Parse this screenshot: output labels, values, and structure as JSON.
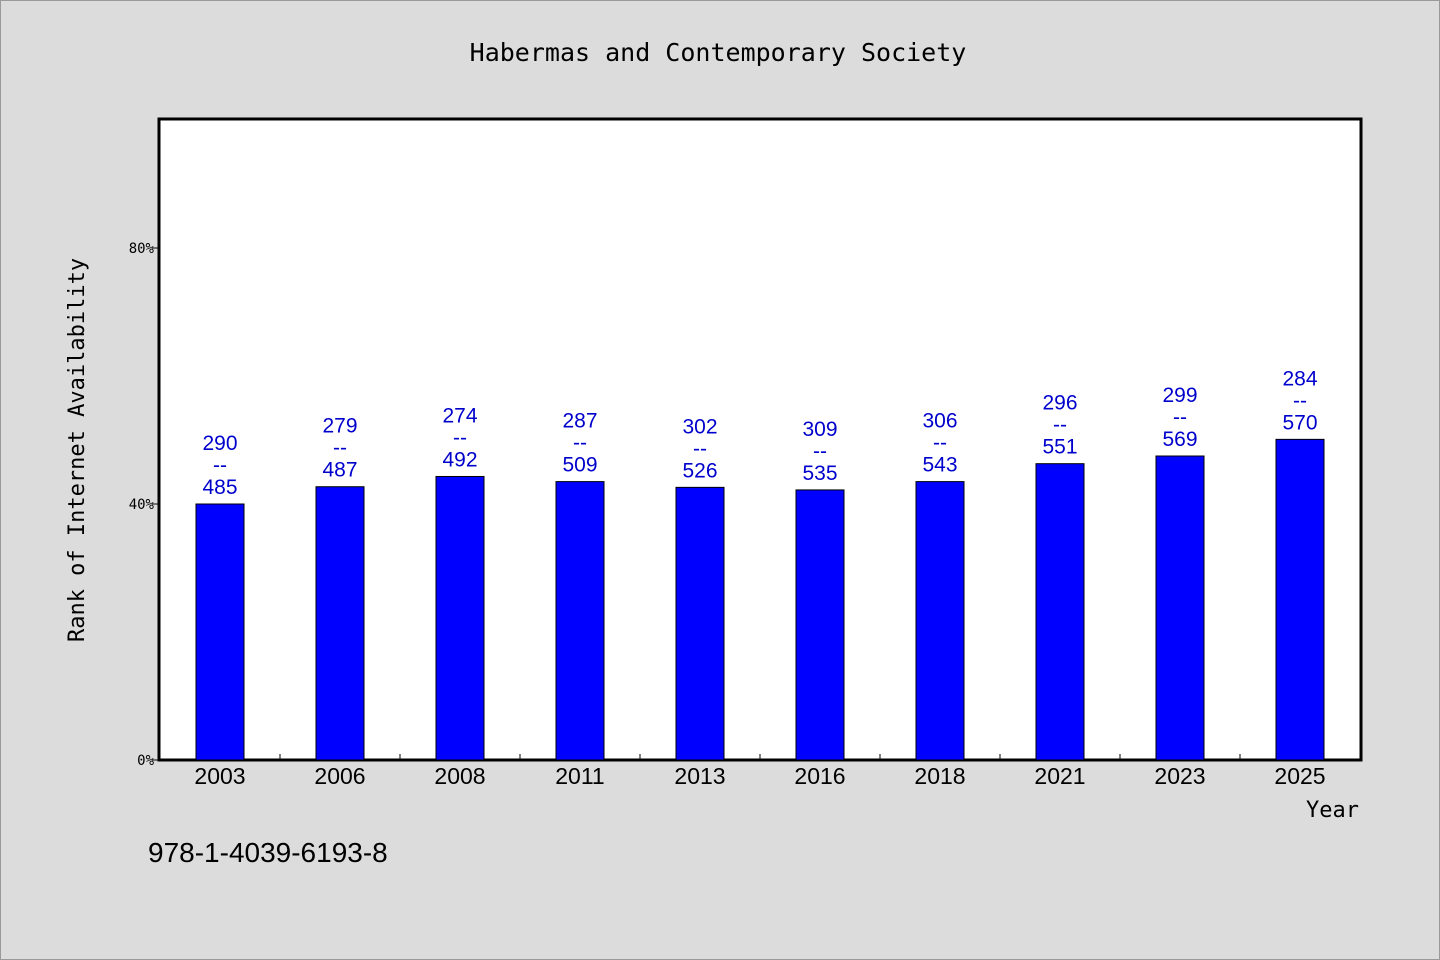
{
  "chart_data": {
    "type": "bar",
    "title": "Habermas and Contemporary Society",
    "xlabel": "Year",
    "ylabel": "Rank of Internet Availability",
    "ylim": [
      0,
      100
    ],
    "yticks": [
      {
        "value": 0,
        "label": "0%"
      },
      {
        "value": 40,
        "label": "40%"
      },
      {
        "value": 80,
        "label": "80%"
      }
    ],
    "categories": [
      "2003",
      "2006",
      "2008",
      "2011",
      "2013",
      "2016",
      "2018",
      "2021",
      "2023",
      "2025"
    ],
    "values": [
      40.0,
      42.7,
      44.3,
      43.5,
      42.6,
      42.2,
      43.5,
      46.3,
      47.5,
      50.1
    ],
    "data_labels": [
      [
        "290",
        "--",
        "485"
      ],
      [
        "279",
        "--",
        "487"
      ],
      [
        "274",
        "--",
        "492"
      ],
      [
        "287",
        "--",
        "509"
      ],
      [
        "302",
        "--",
        "526"
      ],
      [
        "309",
        "--",
        "535"
      ],
      [
        "306",
        "--",
        "543"
      ],
      [
        "296",
        "--",
        "551"
      ],
      [
        "299",
        "--",
        "569"
      ],
      [
        "284",
        "--",
        "570"
      ]
    ],
    "bar_color": "#0000ff",
    "label_color": "#0000cc",
    "grid": false,
    "legend": "none"
  },
  "footer": {
    "isbn": "978-1-4039-6193-8"
  }
}
